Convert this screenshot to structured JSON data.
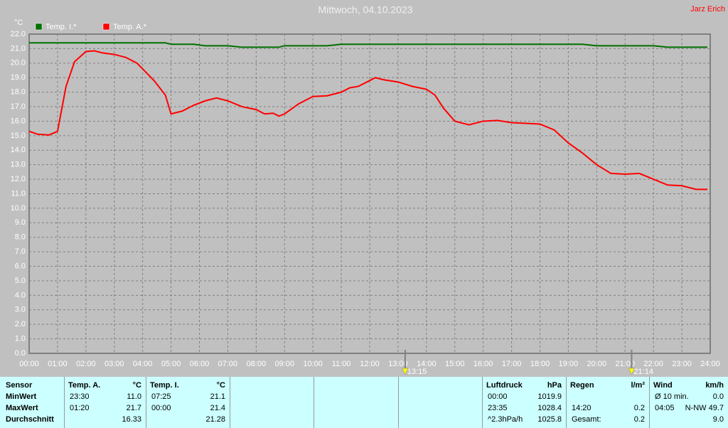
{
  "chart_data": {
    "type": "line",
    "title": "Mittwoch, 04.10.2023",
    "author": "Jarz Erich",
    "y_unit": "°C",
    "x": [
      0,
      0.3,
      0.7,
      1.0,
      1.3,
      1.6,
      2.0,
      2.3,
      2.6,
      3.0,
      3.4,
      3.8,
      4.0,
      4.4,
      4.8,
      5.0,
      5.4,
      5.8,
      6.2,
      6.6,
      7.0,
      7.5,
      8.0,
      8.3,
      8.6,
      8.8,
      9.0,
      9.5,
      10.0,
      10.5,
      11.0,
      11.3,
      11.6,
      12.0,
      12.2,
      12.5,
      13.0,
      13.5,
      14.0,
      14.3,
      14.6,
      15.0,
      15.5,
      16.0,
      16.5,
      17.0,
      17.5,
      18.0,
      18.5,
      19.0,
      19.5,
      20.0,
      20.5,
      21.0,
      21.5,
      22.0,
      22.5,
      23.0,
      23.5,
      23.9
    ],
    "series": [
      {
        "name": "Temp. I.*",
        "color": "#007000",
        "values": [
          21.4,
          21.4,
          21.4,
          21.4,
          21.4,
          21.4,
          21.4,
          21.4,
          21.4,
          21.4,
          21.4,
          21.4,
          21.4,
          21.4,
          21.4,
          21.3,
          21.3,
          21.3,
          21.2,
          21.2,
          21.2,
          21.1,
          21.1,
          21.1,
          21.1,
          21.1,
          21.2,
          21.2,
          21.2,
          21.2,
          21.3,
          21.3,
          21.3,
          21.3,
          21.3,
          21.3,
          21.3,
          21.3,
          21.3,
          21.3,
          21.3,
          21.3,
          21.3,
          21.3,
          21.3,
          21.3,
          21.3,
          21.3,
          21.3,
          21.3,
          21.3,
          21.2,
          21.2,
          21.2,
          21.2,
          21.2,
          21.1,
          21.1,
          21.1,
          21.1
        ]
      },
      {
        "name": "Temp. A.*",
        "color": "#ff0000",
        "values": [
          15.3,
          15.1,
          15.05,
          15.3,
          18.4,
          20.1,
          20.8,
          20.85,
          20.7,
          20.6,
          20.4,
          20.0,
          19.6,
          18.8,
          17.8,
          16.5,
          16.7,
          17.1,
          17.4,
          17.6,
          17.4,
          17.0,
          16.8,
          16.5,
          16.55,
          16.35,
          16.5,
          17.2,
          17.7,
          17.75,
          18.0,
          18.3,
          18.4,
          18.8,
          19.0,
          18.85,
          18.7,
          18.4,
          18.2,
          17.8,
          16.9,
          16.0,
          15.75,
          16.0,
          16.05,
          15.9,
          15.85,
          15.8,
          15.4,
          14.5,
          13.8,
          13.0,
          12.4,
          12.35,
          12.4,
          12.0,
          11.6,
          11.55,
          11.3,
          11.3
        ]
      }
    ],
    "xlim": [
      0,
      24
    ],
    "xticks": [
      {
        "value": 0,
        "label": "00:00"
      },
      {
        "value": 1,
        "label": "01:00"
      },
      {
        "value": 2,
        "label": "02:00"
      },
      {
        "value": 3,
        "label": "03:00"
      },
      {
        "value": 4,
        "label": "04:00"
      },
      {
        "value": 5,
        "label": "05:00"
      },
      {
        "value": 6,
        "label": "06:00"
      },
      {
        "value": 7,
        "label": "07:00"
      },
      {
        "value": 8,
        "label": "08:00"
      },
      {
        "value": 9,
        "label": "09:00"
      },
      {
        "value": 10,
        "label": "10:00"
      },
      {
        "value": 11,
        "label": "11:00"
      },
      {
        "value": 12,
        "label": "12:00"
      },
      {
        "value": 13,
        "label": "13:00"
      },
      {
        "value": 14,
        "label": "14:00"
      },
      {
        "value": 15,
        "label": "15:00"
      },
      {
        "value": 16,
        "label": "16:00"
      },
      {
        "value": 17,
        "label": "17:00"
      },
      {
        "value": 18,
        "label": "18:00"
      },
      {
        "value": 19,
        "label": "19:00"
      },
      {
        "value": 20,
        "label": "20:00"
      },
      {
        "value": 21,
        "label": "21:00"
      },
      {
        "value": 22,
        "label": "22:00"
      },
      {
        "value": 23,
        "label": "23:00"
      },
      {
        "value": 24,
        "label": "24:00"
      }
    ],
    "ylim": [
      0,
      22
    ],
    "yticks": [
      {
        "value": 0,
        "label": "0.0"
      },
      {
        "value": 1,
        "label": "1.0"
      },
      {
        "value": 2,
        "label": "2.0"
      },
      {
        "value": 3,
        "label": "3.0"
      },
      {
        "value": 4,
        "label": "4.0"
      },
      {
        "value": 5,
        "label": "5.0"
      },
      {
        "value": 6,
        "label": "6.0"
      },
      {
        "value": 7,
        "label": "7.0"
      },
      {
        "value": 8,
        "label": "8.0"
      },
      {
        "value": 9,
        "label": "9.0"
      },
      {
        "value": 10,
        "label": "10.0"
      },
      {
        "value": 11,
        "label": "11.0"
      },
      {
        "value": 12,
        "label": "12.0"
      },
      {
        "value": 13,
        "label": "13.0"
      },
      {
        "value": 14,
        "label": "14.0"
      },
      {
        "value": 15,
        "label": "15.0"
      },
      {
        "value": 16,
        "label": "16.0"
      },
      {
        "value": 17,
        "label": "17.0"
      },
      {
        "value": 18,
        "label": "18.0"
      },
      {
        "value": 19,
        "label": "19.0"
      },
      {
        "value": 20,
        "label": "20.0"
      },
      {
        "value": 21,
        "label": "21.0"
      },
      {
        "value": 22,
        "label": "22.0"
      }
    ],
    "grid": true,
    "markers": [
      {
        "x": 13.25,
        "label": "13:15"
      },
      {
        "x": 21.23,
        "label": "21:14"
      }
    ]
  },
  "table": {
    "row_labels": [
      "Sensor",
      "MinWert",
      "MaxWert",
      "Durchschnitt"
    ],
    "columns": [
      {
        "name": "Temp. A.",
        "unit": "°C",
        "min": [
          "23:30",
          "11.0"
        ],
        "max": [
          "01:20",
          "21.7"
        ],
        "avg": [
          "16.33"
        ]
      },
      {
        "name": "Temp. I.",
        "unit": "°C",
        "min": [
          "07:25",
          "21.1"
        ],
        "max": [
          "00:00",
          "21.4"
        ],
        "avg": [
          "21.28"
        ]
      },
      {
        "name": "Luftdruck",
        "unit": "hPa",
        "min": [
          "00:00",
          "1019.9"
        ],
        "max": [
          "23:35",
          "1028.4"
        ],
        "avg": [
          "^2.3hPa/h",
          "1025.8"
        ]
      },
      {
        "name": "Regen",
        "unit": "l/m²",
        "max": [
          "14:20",
          "0.2"
        ],
        "avg": [
          "Gesamt:",
          "0.2"
        ]
      },
      {
        "name": "Wind",
        "unit": "km/h",
        "min": [
          "Ø 10 min.",
          "0.0"
        ],
        "max": [
          "04:05",
          "N-NW 49.7"
        ],
        "avg": [
          "9.0"
        ]
      }
    ]
  }
}
